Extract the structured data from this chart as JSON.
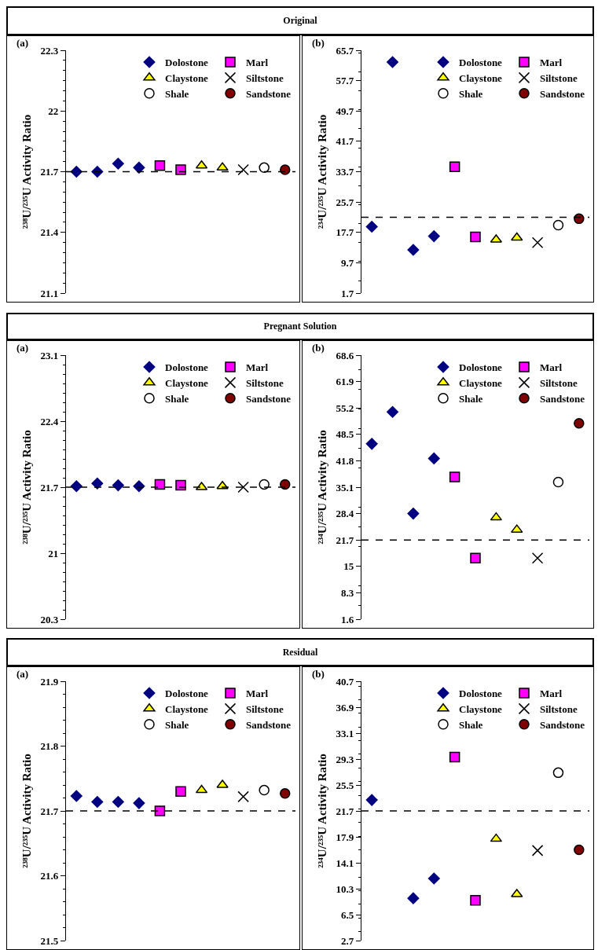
{
  "chart_data": [
    {
      "type": "scatter",
      "title": "Original",
      "annotations": [
        "(a)"
      ],
      "ylabel": "²³⁸U/²³⁵U Activity Ratio",
      "categories": [
        null,
        null,
        null,
        null,
        null,
        null,
        null,
        null,
        null,
        null,
        null
      ],
      "ylim": [
        21.1,
        22.3
      ],
      "yticks": [
        21.1,
        21.4,
        21.7,
        22,
        22.3
      ],
      "grid": false,
      "legend": "top right",
      "series": [
        {
          "name": "Dolostone",
          "color": "#000080",
          "marker": "diamond",
          "values": [
            21.7,
            21.7,
            21.74,
            21.72,
            null,
            null,
            null,
            null,
            null,
            null,
            null
          ]
        },
        {
          "name": "Marl",
          "color": "#ff00ff",
          "marker": "square",
          "values": [
            null,
            null,
            null,
            null,
            21.73,
            21.71,
            null,
            null,
            null,
            null,
            null
          ]
        },
        {
          "name": "Claystone",
          "color": "#ffff00",
          "marker": "triangle",
          "values": [
            null,
            null,
            null,
            null,
            null,
            null,
            21.73,
            21.72,
            null,
            null,
            null
          ]
        },
        {
          "name": "Siltstone",
          "color": "#000000",
          "marker": "cross",
          "values": [
            null,
            null,
            null,
            null,
            null,
            null,
            null,
            null,
            21.71,
            null,
            null
          ]
        },
        {
          "name": "Shale",
          "color": "#ffffff",
          "marker": "circle",
          "values": [
            null,
            null,
            null,
            null,
            null,
            null,
            null,
            null,
            null,
            21.72,
            null
          ]
        },
        {
          "name": "Sandstone",
          "color": "#800000",
          "marker": "circle",
          "values": [
            null,
            null,
            null,
            null,
            null,
            null,
            null,
            null,
            null,
            null,
            21.71
          ]
        }
      ],
      "ref_lines": [
        {
          "axis": "y",
          "value": 21.7,
          "line_style": "dashed"
        }
      ]
    },
    {
      "type": "scatter",
      "annotations": [
        "(b)"
      ],
      "ylabel": "²³⁴U/²³⁵U Activity Ratio",
      "categories": [
        null,
        null,
        null,
        null,
        null,
        null,
        null,
        null,
        null,
        null,
        null
      ],
      "ylim": [
        1.7,
        65.7
      ],
      "yticks": [
        1.7,
        9.7,
        17.7,
        25.7,
        33.7,
        41.7,
        49.7,
        57.7,
        65.7
      ],
      "grid": false,
      "legend": "top right",
      "series": [
        {
          "name": "Dolostone",
          "color": "#000080",
          "marker": "diamond",
          "values": [
            19.2,
            62.6,
            13.1,
            16.7,
            null,
            null,
            null,
            null,
            null,
            null,
            null
          ]
        },
        {
          "name": "Marl",
          "color": "#ff00ff",
          "marker": "square",
          "values": [
            null,
            null,
            null,
            null,
            35.0,
            16.5,
            null,
            null,
            null,
            null,
            null
          ]
        },
        {
          "name": "Claystone",
          "color": "#ffff00",
          "marker": "triangle",
          "values": [
            null,
            null,
            null,
            null,
            null,
            null,
            15.8,
            16.3,
            null,
            null,
            null
          ]
        },
        {
          "name": "Siltstone",
          "color": "#000000",
          "marker": "cross",
          "values": [
            null,
            null,
            null,
            null,
            null,
            null,
            null,
            null,
            15.0,
            null,
            null
          ]
        },
        {
          "name": "Shale",
          "color": "#ffffff",
          "marker": "circle",
          "values": [
            null,
            null,
            null,
            null,
            null,
            null,
            null,
            null,
            null,
            19.6,
            null
          ]
        },
        {
          "name": "Sandstone",
          "color": "#800000",
          "marker": "circle",
          "values": [
            null,
            null,
            null,
            null,
            null,
            null,
            null,
            null,
            null,
            null,
            21.3
          ]
        }
      ],
      "ref_lines": [
        {
          "axis": "y",
          "value": 21.7,
          "line_style": "dashed"
        }
      ]
    },
    {
      "type": "scatter",
      "title": "Pregnant Solution",
      "annotations": [
        "(a)"
      ],
      "ylabel": "²³⁸U/²³⁵U Activity Ratio",
      "categories": [
        null,
        null,
        null,
        null,
        null,
        null,
        null,
        null,
        null,
        null,
        null
      ],
      "ylim": [
        20.3,
        23.1
      ],
      "yticks": [
        20.3,
        21,
        21.7,
        22.4,
        23.1
      ],
      "grid": false,
      "legend": "top right",
      "series": [
        {
          "name": "Dolostone",
          "color": "#000080",
          "marker": "diamond",
          "values": [
            21.71,
            21.74,
            21.72,
            21.71,
            null,
            null,
            null,
            null,
            null,
            null,
            null
          ]
        },
        {
          "name": "Marl",
          "color": "#ff00ff",
          "marker": "square",
          "values": [
            null,
            null,
            null,
            null,
            21.73,
            21.72,
            null,
            null,
            null,
            null,
            null
          ]
        },
        {
          "name": "Claystone",
          "color": "#ffff00",
          "marker": "triangle",
          "values": [
            null,
            null,
            null,
            null,
            null,
            null,
            21.7,
            21.71,
            null,
            null,
            null
          ]
        },
        {
          "name": "Siltstone",
          "color": "#000000",
          "marker": "cross",
          "values": [
            null,
            null,
            null,
            null,
            null,
            null,
            null,
            null,
            21.7,
            null,
            null
          ]
        },
        {
          "name": "Shale",
          "color": "#ffffff",
          "marker": "circle",
          "values": [
            null,
            null,
            null,
            null,
            null,
            null,
            null,
            null,
            null,
            21.73,
            null
          ]
        },
        {
          "name": "Sandstone",
          "color": "#800000",
          "marker": "circle",
          "values": [
            null,
            null,
            null,
            null,
            null,
            null,
            null,
            null,
            null,
            null,
            21.73
          ]
        }
      ],
      "ref_lines": [
        {
          "axis": "y",
          "value": 21.7,
          "line_style": "dashed"
        }
      ]
    },
    {
      "type": "scatter",
      "annotations": [
        "(b)"
      ],
      "ylabel": "²³⁴U/²³⁵U Activity Ratio",
      "categories": [
        null,
        null,
        null,
        null,
        null,
        null,
        null,
        null,
        null,
        null,
        null
      ],
      "ylim": [
        1.6,
        68.6
      ],
      "yticks": [
        1.6,
        8.3,
        15,
        21.7,
        28.4,
        35.1,
        41.8,
        48.5,
        55.2,
        61.9,
        68.6
      ],
      "grid": false,
      "legend": "top right",
      "series": [
        {
          "name": "Dolostone",
          "color": "#000080",
          "marker": "diamond",
          "values": [
            46.1,
            54.2,
            28.4,
            42.4,
            null,
            null,
            null,
            null,
            null,
            null,
            null
          ]
        },
        {
          "name": "Marl",
          "color": "#ff00ff",
          "marker": "square",
          "values": [
            null,
            null,
            null,
            null,
            37.7,
            17.1,
            null,
            null,
            null,
            null,
            null
          ]
        },
        {
          "name": "Claystone",
          "color": "#ffff00",
          "marker": "triangle",
          "values": [
            null,
            null,
            null,
            null,
            null,
            null,
            27.4,
            24.3,
            null,
            null,
            null
          ]
        },
        {
          "name": "Siltstone",
          "color": "#000000",
          "marker": "cross",
          "values": [
            null,
            null,
            null,
            null,
            null,
            null,
            null,
            null,
            17.1,
            null,
            null
          ]
        },
        {
          "name": "Shale",
          "color": "#ffffff",
          "marker": "circle",
          "values": [
            null,
            null,
            null,
            null,
            null,
            null,
            null,
            null,
            null,
            36.4,
            null
          ]
        },
        {
          "name": "Sandstone",
          "color": "#800000",
          "marker": "circle",
          "values": [
            null,
            null,
            null,
            null,
            null,
            null,
            null,
            null,
            null,
            null,
            51.3
          ]
        }
      ],
      "ref_lines": [
        {
          "axis": "y",
          "value": 21.7,
          "line_style": "dashed"
        }
      ]
    },
    {
      "type": "scatter",
      "title": "Residual",
      "annotations": [
        "(a)"
      ],
      "ylabel": "²³⁸U/²³⁵U Activity Ratio",
      "categories": [
        null,
        null,
        null,
        null,
        null,
        null,
        null,
        null,
        null,
        null,
        null
      ],
      "ylim": [
        21.5,
        21.9
      ],
      "yticks": [
        21.5,
        21.6,
        21.7,
        21.8,
        21.9
      ],
      "grid": false,
      "legend": "top right",
      "series": [
        {
          "name": "Dolostone",
          "color": "#000080",
          "marker": "diamond",
          "values": [
            21.723,
            21.714,
            21.714,
            21.712,
            null,
            null,
            null,
            null,
            null,
            null,
            null
          ]
        },
        {
          "name": "Marl",
          "color": "#ff00ff",
          "marker": "square",
          "values": [
            null,
            null,
            null,
            null,
            21.7,
            21.73,
            null,
            null,
            null,
            null,
            null
          ]
        },
        {
          "name": "Claystone",
          "color": "#ffff00",
          "marker": "triangle",
          "values": [
            null,
            null,
            null,
            null,
            null,
            null,
            21.732,
            21.74,
            null,
            null,
            null
          ]
        },
        {
          "name": "Siltstone",
          "color": "#000000",
          "marker": "cross",
          "values": [
            null,
            null,
            null,
            null,
            null,
            null,
            null,
            null,
            21.722,
            null,
            null
          ]
        },
        {
          "name": "Shale",
          "color": "#ffffff",
          "marker": "circle",
          "values": [
            null,
            null,
            null,
            null,
            null,
            null,
            null,
            null,
            null,
            21.732,
            null
          ]
        },
        {
          "name": "Sandstone",
          "color": "#800000",
          "marker": "circle",
          "values": [
            null,
            null,
            null,
            null,
            null,
            null,
            null,
            null,
            null,
            null,
            21.727
          ]
        }
      ],
      "ref_lines": [
        {
          "axis": "y",
          "value": 21.7,
          "line_style": "dashed"
        }
      ]
    },
    {
      "type": "scatter",
      "annotations": [
        "(b)"
      ],
      "ylabel": "²³⁴U/²³⁵U Activity Ratio",
      "categories": [
        null,
        null,
        null,
        null,
        null,
        null,
        null,
        null,
        null,
        null,
        null
      ],
      "ylim": [
        2.7,
        40.7
      ],
      "yticks": [
        2.7,
        6.5,
        10.3,
        14.1,
        17.9,
        21.7,
        25.5,
        29.3,
        33.1,
        36.9,
        40.7
      ],
      "grid": false,
      "legend": "top right",
      "series": [
        {
          "name": "Dolostone",
          "color": "#000080",
          "marker": "diamond",
          "values": [
            23.3,
            null,
            8.9,
            11.8,
            null,
            null,
            null,
            null,
            null,
            null,
            null
          ]
        },
        {
          "name": "Marl",
          "color": "#ff00ff",
          "marker": "square",
          "values": [
            null,
            null,
            null,
            null,
            29.6,
            8.6,
            null,
            null,
            null,
            null,
            null
          ]
        },
        {
          "name": "Claystone",
          "color": "#ffff00",
          "marker": "triangle",
          "values": [
            null,
            null,
            null,
            null,
            null,
            null,
            17.6,
            9.5,
            null,
            null,
            null
          ]
        },
        {
          "name": "Siltstone",
          "color": "#000000",
          "marker": "cross",
          "values": [
            null,
            null,
            null,
            null,
            null,
            null,
            null,
            null,
            15.9,
            null,
            null
          ]
        },
        {
          "name": "Shale",
          "color": "#ffffff",
          "marker": "circle",
          "values": [
            null,
            null,
            null,
            null,
            null,
            null,
            null,
            null,
            null,
            27.3,
            null
          ]
        },
        {
          "name": "Sandstone",
          "color": "#800000",
          "marker": "circle",
          "values": [
            null,
            null,
            null,
            null,
            null,
            null,
            null,
            null,
            null,
            null,
            16.0
          ]
        }
      ],
      "ref_lines": [
        {
          "axis": "y",
          "value": 21.7,
          "line_style": "dashed"
        }
      ]
    }
  ]
}
